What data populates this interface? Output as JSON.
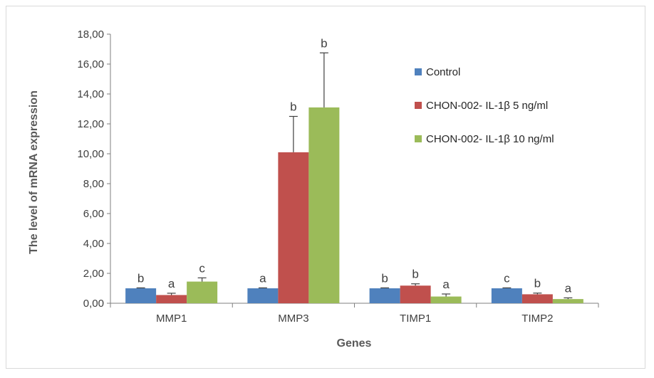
{
  "chart_data": {
    "type": "bar",
    "categories": [
      "MMP1",
      "MMP3",
      "TIMP1",
      "TIMP2"
    ],
    "series": [
      {
        "name": "Control",
        "color": "#4f81bd",
        "values": [
          1.0,
          1.0,
          1.0,
          1.0
        ],
        "errors": [
          0.03,
          0.03,
          0.03,
          0.03
        ],
        "labels": [
          "b",
          "a",
          "b",
          "c"
        ]
      },
      {
        "name": "CHON-002- IL-1β 5 ng/ml",
        "color": "#c0504d",
        "values": [
          0.55,
          10.1,
          1.18,
          0.6
        ],
        "errors": [
          0.12,
          2.4,
          0.12,
          0.08
        ],
        "labels": [
          "a",
          "b",
          "b",
          "b"
        ]
      },
      {
        "name": "CHON-002- IL-1β 10 ng/ml",
        "color": "#9bbb59",
        "values": [
          1.45,
          13.1,
          0.45,
          0.28
        ],
        "errors": [
          0.25,
          3.65,
          0.17,
          0.08
        ],
        "labels": [
          "c",
          "b",
          "a",
          "a"
        ]
      }
    ],
    "y_ticks": [
      "0,00",
      "2,00",
      "4,00",
      "6,00",
      "8,00",
      "10,00",
      "12,00",
      "14,00",
      "16,00",
      "18,00"
    ],
    "ylim": [
      0,
      18
    ],
    "xlabel": "Genes",
    "ylabel": "The level of mRNA expression",
    "grid": false,
    "legend_position": "top-right"
  }
}
